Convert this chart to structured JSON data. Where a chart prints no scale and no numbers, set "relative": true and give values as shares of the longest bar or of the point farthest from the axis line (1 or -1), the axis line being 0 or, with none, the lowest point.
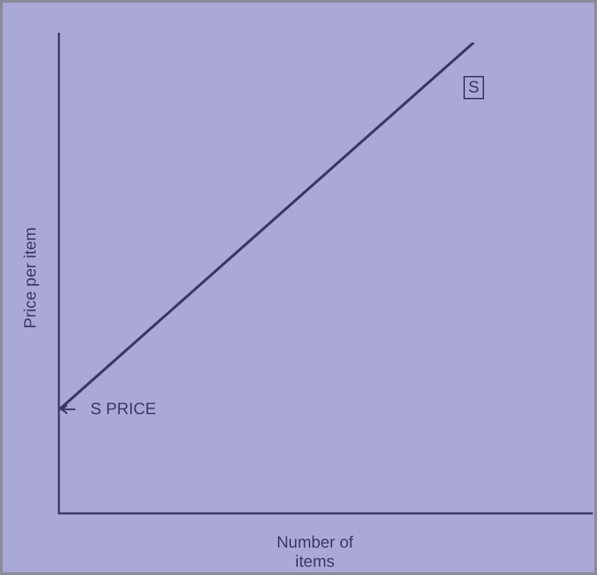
{
  "chart_data": {
    "type": "line",
    "relative": true,
    "xlabel": "Number of\nitems",
    "ylabel": "Price per item",
    "categories": [
      null,
      null
    ],
    "series": [
      {
        "name": "S",
        "color": "#3b3868",
        "values": [
          0.22,
          1
        ]
      }
    ],
    "annotations": [
      "S PRICE"
    ]
  }
}
